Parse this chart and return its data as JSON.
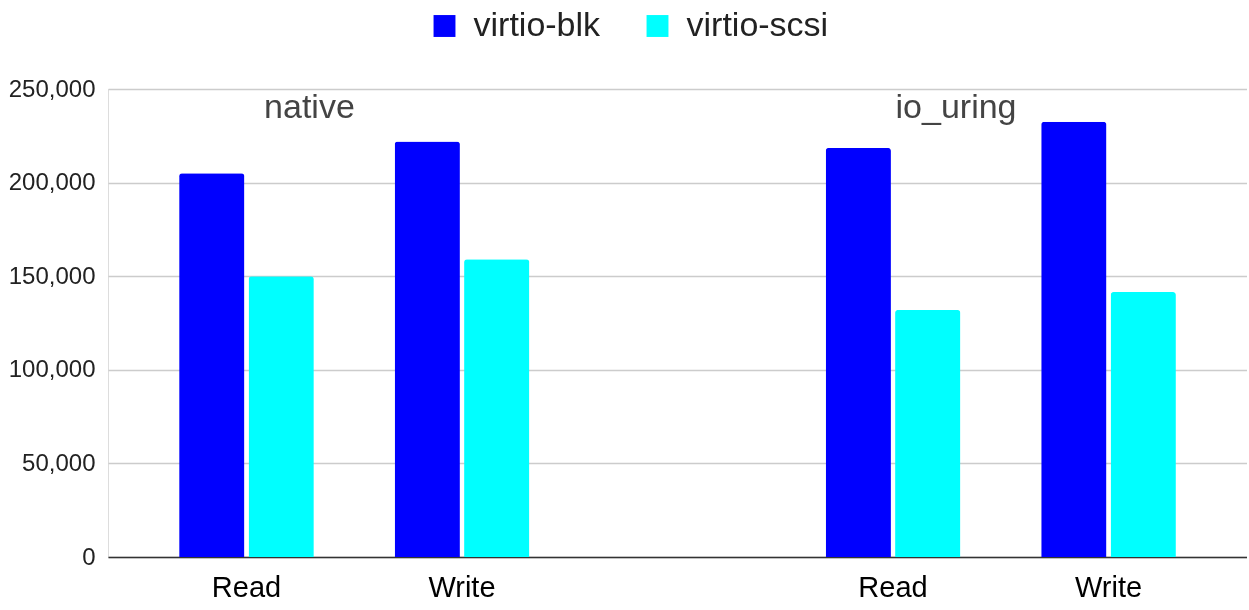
{
  "chart_data": {
    "type": "bar",
    "categories": [
      "Read",
      "Write",
      null,
      "Read",
      "Write"
    ],
    "series": [
      {
        "name": "virtio-blk",
        "color": "#0000ff",
        "values": [
          205000,
          222000,
          null,
          218500,
          232500
        ]
      },
      {
        "name": "virtio-scsi",
        "color": "#00ffff",
        "values": [
          150000,
          159000,
          null,
          132000,
          141500
        ]
      }
    ],
    "ylim": [
      0,
      250000
    ],
    "yticks": [
      0,
      {
        "value": 50000,
        "label": "50,000"
      },
      {
        "value": 100000,
        "label": "100,000"
      },
      {
        "value": 150000,
        "label": "150,000"
      },
      {
        "value": 200000,
        "label": "200,000"
      },
      {
        "value": 250000,
        "label": "250,000"
      }
    ],
    "annotations": [
      "native",
      "io_uring"
    ],
    "grid": "y",
    "legend": "top"
  }
}
